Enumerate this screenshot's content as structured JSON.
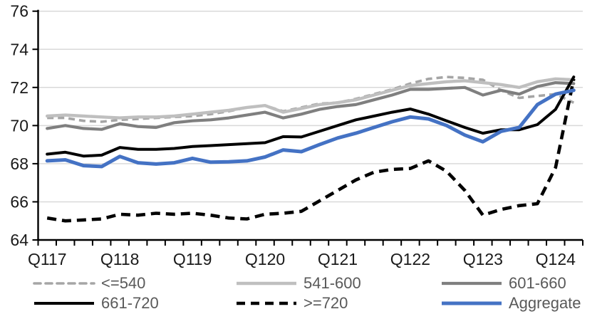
{
  "colors": {
    "background": "#FFFFFF",
    "grid": "#D9D9D9",
    "axis": "#000000",
    "tick_label": "#1A1A1A",
    "legend_text": "#595959"
  },
  "chart_data": {
    "type": "line",
    "title": "",
    "xlabel": "",
    "ylabel": "",
    "ylim": [
      64,
      76
    ],
    "y_ticks": [
      64,
      66,
      68,
      70,
      72,
      74,
      76
    ],
    "grid": "horizontal",
    "legend_position": "bottom",
    "n_points": 30,
    "x_ticks": [
      {
        "index": 0,
        "label": "Q117"
      },
      {
        "index": 4,
        "label": "Q118"
      },
      {
        "index": 8,
        "label": "Q119"
      },
      {
        "index": 12,
        "label": "Q120"
      },
      {
        "index": 16,
        "label": "Q121"
      },
      {
        "index": 20,
        "label": "Q122"
      },
      {
        "index": 24,
        "label": "Q123"
      },
      {
        "index": 28,
        "label": "Q124"
      }
    ],
    "series": [
      {
        "name": "<=540",
        "color": "#A5A5A5",
        "dash": true,
        "width": 3.6,
        "values": [
          70.4,
          70.4,
          70.25,
          70.2,
          70.3,
          70.35,
          70.4,
          70.45,
          70.5,
          70.6,
          70.75,
          70.95,
          71.05,
          70.75,
          70.95,
          71.15,
          71.2,
          71.4,
          71.65,
          71.9,
          72.2,
          72.45,
          72.55,
          72.5,
          72.4,
          71.85,
          71.45,
          71.55,
          71.65,
          71.2
        ]
      },
      {
        "name": "541-600",
        "color": "#BFBFBF",
        "dash": false,
        "width": 4.4,
        "values": [
          70.5,
          70.55,
          70.5,
          70.45,
          70.4,
          70.45,
          70.45,
          70.5,
          70.6,
          70.7,
          70.8,
          70.95,
          71.05,
          70.7,
          70.9,
          71.1,
          71.2,
          71.35,
          71.6,
          71.85,
          72.1,
          72.2,
          72.3,
          72.35,
          72.25,
          72.15,
          72.0,
          72.3,
          72.45,
          72.4
        ]
      },
      {
        "name": "601-660",
        "color": "#7F7F7F",
        "dash": false,
        "width": 4.2,
        "values": [
          69.85,
          70.0,
          69.85,
          69.8,
          70.1,
          69.95,
          69.9,
          70.15,
          70.25,
          70.3,
          70.4,
          70.55,
          70.7,
          70.4,
          70.6,
          70.85,
          71.0,
          71.1,
          71.35,
          71.6,
          71.9,
          71.9,
          71.95,
          72.0,
          71.6,
          71.85,
          71.65,
          72.05,
          72.25,
          72.2
        ]
      },
      {
        "name": "661-720",
        "color": "#000000",
        "dash": false,
        "width": 4.0,
        "values": [
          68.5,
          68.6,
          68.4,
          68.45,
          68.85,
          68.75,
          68.75,
          68.8,
          68.9,
          68.95,
          69.0,
          69.05,
          69.1,
          69.42,
          69.4,
          69.7,
          70.0,
          70.3,
          70.5,
          70.7,
          70.87,
          70.6,
          70.25,
          69.9,
          69.6,
          69.78,
          69.78,
          70.05,
          70.85,
          72.55
        ]
      },
      {
        "name": ">=720",
        "color": "#000000",
        "dash": true,
        "width": 4.6,
        "values": [
          65.15,
          65.0,
          65.05,
          65.1,
          65.35,
          65.3,
          65.4,
          65.35,
          65.4,
          65.3,
          65.15,
          65.1,
          65.35,
          65.4,
          65.5,
          66.05,
          66.6,
          67.15,
          67.55,
          67.7,
          67.75,
          68.15,
          67.6,
          66.6,
          65.3,
          65.6,
          65.8,
          65.9,
          67.8,
          72.45
        ]
      },
      {
        "name": "Aggregate",
        "color": "#4472C4",
        "dash": false,
        "width": 5.0,
        "values": [
          68.15,
          68.2,
          67.9,
          67.85,
          68.38,
          68.05,
          67.98,
          68.05,
          68.28,
          68.08,
          68.1,
          68.15,
          68.35,
          68.72,
          68.63,
          69.0,
          69.35,
          69.6,
          69.9,
          70.2,
          70.45,
          70.35,
          70.0,
          69.5,
          69.15,
          69.7,
          69.9,
          71.1,
          71.65,
          71.85
        ]
      }
    ]
  },
  "legend": {
    "items": [
      {
        "series": 0,
        "row": 0,
        "col": 0
      },
      {
        "series": 1,
        "row": 0,
        "col": 1
      },
      {
        "series": 2,
        "row": 0,
        "col": 2
      },
      {
        "series": 3,
        "row": 1,
        "col": 0
      },
      {
        "series": 4,
        "row": 1,
        "col": 1
      },
      {
        "series": 5,
        "row": 1,
        "col": 2
      }
    ]
  }
}
